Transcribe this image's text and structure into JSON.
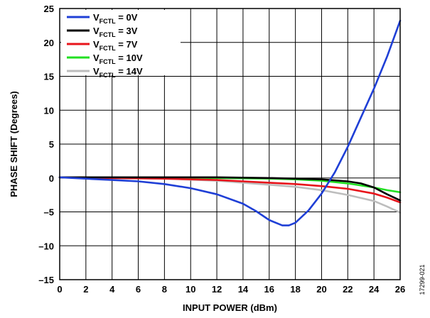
{
  "figure_id": "17299-021",
  "chart_data": {
    "type": "line",
    "title": "",
    "xlabel": "INPUT POWER (dBm)",
    "ylabel": "PHASE SHIFT (Degrees)",
    "xlim": [
      0,
      26
    ],
    "ylim": [
      -15,
      25
    ],
    "x_ticks": [
      0,
      2,
      4,
      6,
      8,
      10,
      12,
      14,
      16,
      18,
      20,
      22,
      24,
      26
    ],
    "y_ticks": [
      -15,
      -10,
      -5,
      0,
      5,
      10,
      15,
      20,
      25
    ],
    "x_tick_labels": [
      "0",
      "2",
      "4",
      "6",
      "8",
      "10",
      "12",
      "14",
      "16",
      "18",
      "20",
      "22",
      "24",
      "26"
    ],
    "y_tick_labels": [
      "–15",
      "–10",
      "–5",
      "0",
      "5",
      "10",
      "15",
      "20",
      "25"
    ],
    "grid": true,
    "legend_position": "top-left",
    "series": [
      {
        "name": "V",
        "name_sub": "FCTL",
        "name_suffix": " = 0V",
        "color": "#1f3fd6",
        "points": [
          [
            0,
            0.1
          ],
          [
            2,
            -0.1
          ],
          [
            4,
            -0.3
          ],
          [
            6,
            -0.5
          ],
          [
            8,
            -0.9
          ],
          [
            10,
            -1.5
          ],
          [
            12,
            -2.4
          ],
          [
            14,
            -3.8
          ],
          [
            15,
            -4.9
          ],
          [
            16,
            -6.2
          ],
          [
            17,
            -7.0
          ],
          [
            17.5,
            -7.0
          ],
          [
            18,
            -6.6
          ],
          [
            19,
            -4.8
          ],
          [
            20,
            -2.3
          ],
          [
            21,
            0.8
          ],
          [
            22,
            4.6
          ],
          [
            23,
            8.9
          ],
          [
            24,
            13.2
          ],
          [
            25,
            17.9
          ],
          [
            26,
            23.2
          ]
        ]
      },
      {
        "name": "V",
        "name_sub": "FCTL",
        "name_suffix": " = 3V",
        "color": "#000000",
        "points": [
          [
            0,
            0.1
          ],
          [
            4,
            0.1
          ],
          [
            8,
            0.1
          ],
          [
            12,
            0.1
          ],
          [
            16,
            0.0
          ],
          [
            18,
            -0.1
          ],
          [
            20,
            -0.2
          ],
          [
            22,
            -0.5
          ],
          [
            23,
            -0.8
          ],
          [
            24,
            -1.4
          ],
          [
            25,
            -2.4
          ],
          [
            26,
            -3.3
          ]
        ]
      },
      {
        "name": "V",
        "name_sub": "FCTL",
        "name_suffix": " = 7V",
        "color": "#e8141b",
        "points": [
          [
            0,
            0.1
          ],
          [
            4,
            0.0
          ],
          [
            8,
            -0.1
          ],
          [
            12,
            -0.3
          ],
          [
            14,
            -0.5
          ],
          [
            16,
            -0.7
          ],
          [
            18,
            -0.9
          ],
          [
            20,
            -1.2
          ],
          [
            22,
            -1.6
          ],
          [
            24,
            -2.3
          ],
          [
            25,
            -2.9
          ],
          [
            26,
            -3.6
          ]
        ]
      },
      {
        "name": "V",
        "name_sub": "FCTL",
        "name_suffix": " = 10V",
        "color": "#22e022",
        "points": [
          [
            0,
            0.1
          ],
          [
            4,
            0.1
          ],
          [
            8,
            0.1
          ],
          [
            12,
            0.0
          ],
          [
            16,
            -0.1
          ],
          [
            18,
            -0.2
          ],
          [
            20,
            -0.4
          ],
          [
            22,
            -0.8
          ],
          [
            24,
            -1.4
          ],
          [
            25,
            -1.8
          ],
          [
            26,
            -2.1
          ]
        ]
      },
      {
        "name": "V",
        "name_sub": "FCTL",
        "name_suffix": " = 14V",
        "color": "#bdbdbd",
        "points": [
          [
            0,
            0.1
          ],
          [
            4,
            0.0
          ],
          [
            8,
            -0.1
          ],
          [
            12,
            -0.4
          ],
          [
            14,
            -0.7
          ],
          [
            16,
            -1.0
          ],
          [
            18,
            -1.3
          ],
          [
            20,
            -1.8
          ],
          [
            22,
            -2.5
          ],
          [
            24,
            -3.4
          ],
          [
            25,
            -4.2
          ],
          [
            26,
            -5.1
          ]
        ]
      }
    ]
  }
}
